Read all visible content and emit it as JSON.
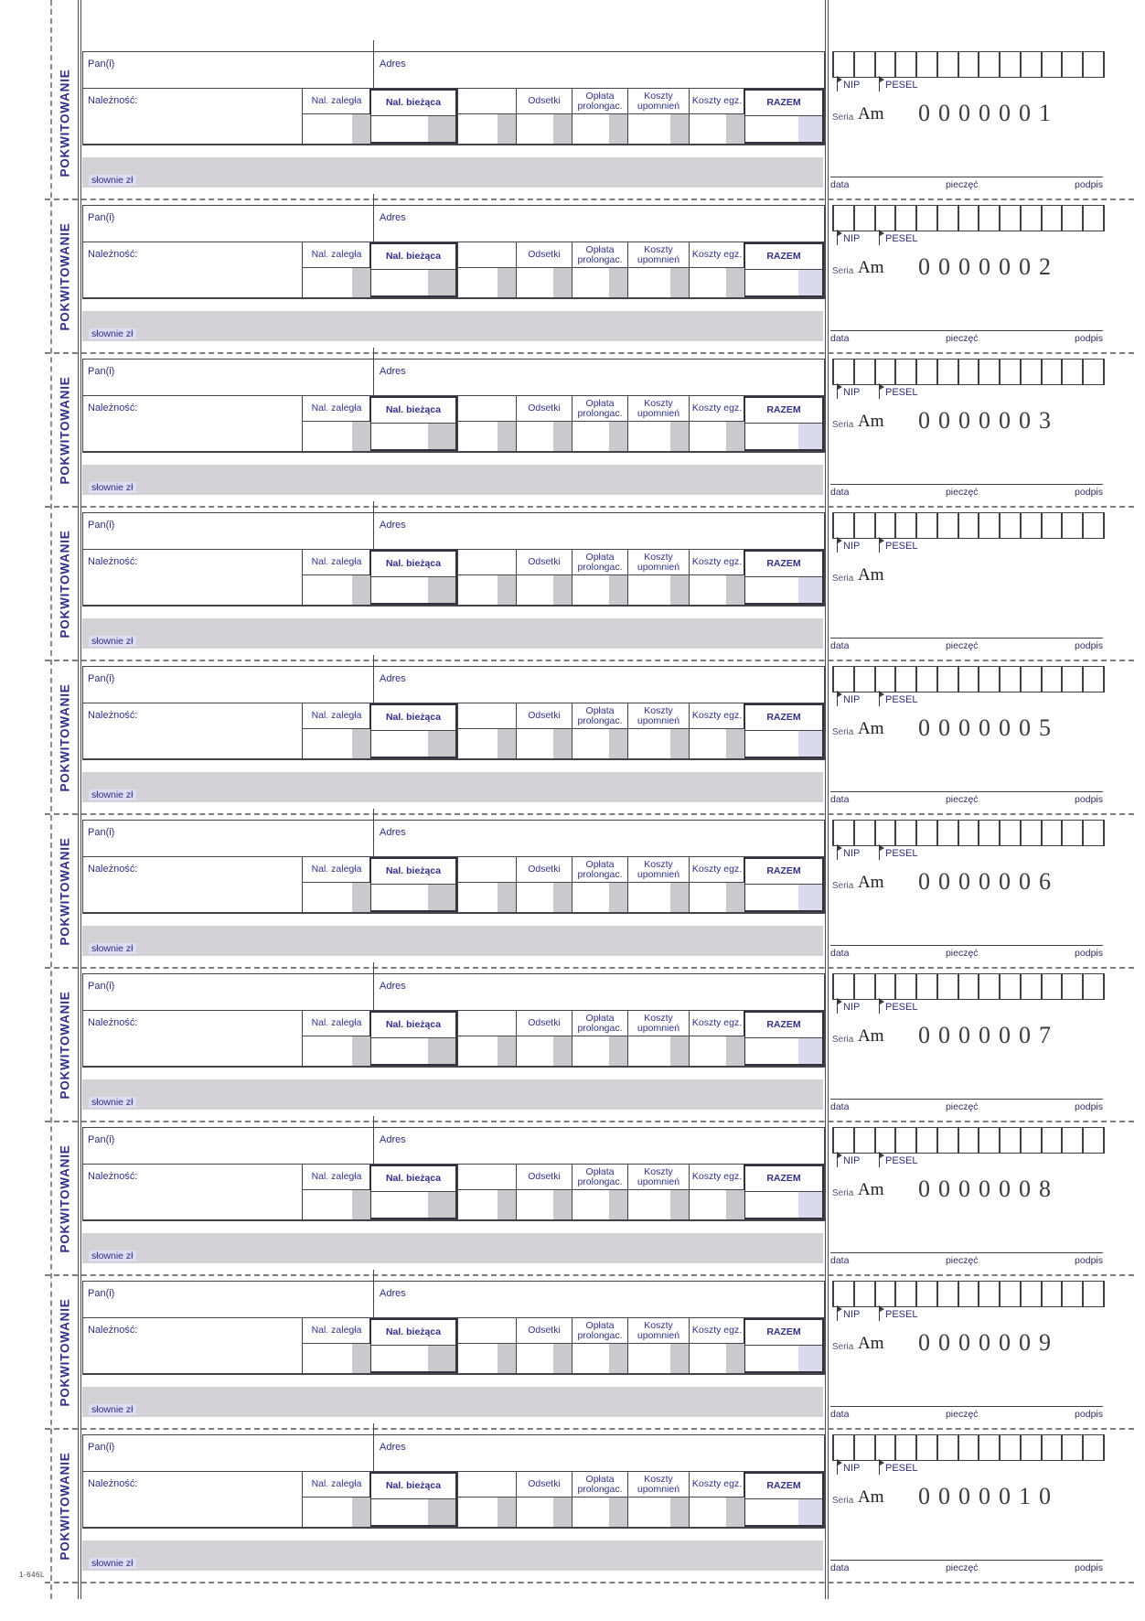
{
  "sheet": {
    "corner_note": "1-646L"
  },
  "form": {
    "stub_label": "POKWITOWANIE",
    "pan_label": "Pan(i)",
    "adres_label": "Adres",
    "naleznosc_label": "Należność:",
    "slownie_label": "słownie zł",
    "columns": [
      "Nal. zaległa",
      "Nal. bieżąca",
      "",
      "Odsetki",
      "Opłata prolongac.",
      "Koszty upomnień",
      "Koszty egz.",
      "RAZEM"
    ],
    "nip_label": "NIP",
    "pesel_label": "PESEL",
    "seria_label": "Seria",
    "seria_value": "Am",
    "footer_labels": [
      "data",
      "pieczęć",
      "podpis"
    ],
    "digit_box_count": 13,
    "colors": {
      "label_blue": "#2f2f8a",
      "grosze_gray": "#c9c9ce",
      "band_gray": "#d2d2d6",
      "razem_lavender": "#d9d9ee"
    }
  },
  "receipts": [
    {
      "serial": "0000001"
    },
    {
      "serial": "0000002"
    },
    {
      "serial": "0000003"
    },
    {
      "serial": ""
    },
    {
      "serial": "0000005"
    },
    {
      "serial": "0000006"
    },
    {
      "serial": "0000007"
    },
    {
      "serial": "0000008"
    },
    {
      "serial": "0000009"
    },
    {
      "serial": "0000010"
    }
  ]
}
